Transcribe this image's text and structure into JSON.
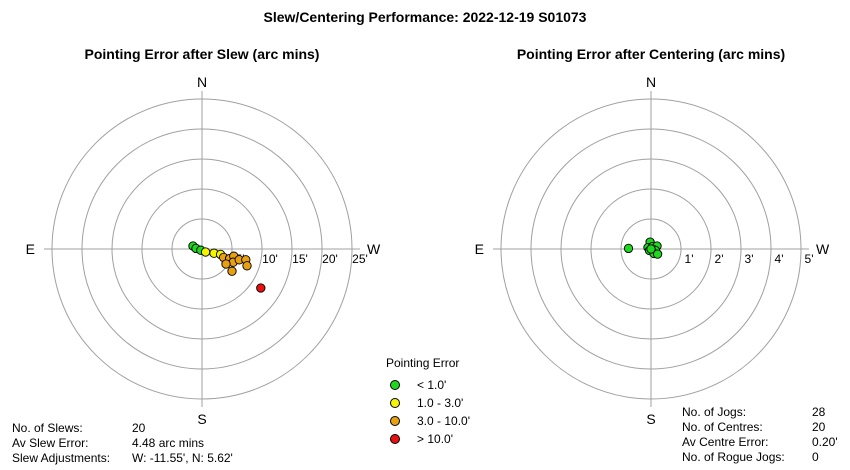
{
  "title": "Slew/Centering Performance: 2022-12-19 S01073",
  "chart_data": [
    {
      "type": "scatter",
      "subtype": "polar",
      "title": "Pointing Error after Slew (arc mins)",
      "directions": {
        "north": "N",
        "south": "S",
        "east": "E",
        "west": "W"
      },
      "ring_labels": [
        "5'",
        "10'",
        "15'",
        "20'",
        "25'"
      ],
      "ring_values": [
        5,
        10,
        15,
        20,
        25
      ],
      "max_radius": 25,
      "points": [
        {
          "w": -1.5,
          "n": 0.5,
          "cat": "green"
        },
        {
          "w": -1.0,
          "n": 0.1,
          "cat": "green"
        },
        {
          "w": -0.2,
          "n": -0.2,
          "cat": "green"
        },
        {
          "w": 0.6,
          "n": -0.5,
          "cat": "yellow"
        },
        {
          "w": 2.0,
          "n": -0.7,
          "cat": "yellow"
        },
        {
          "w": 3.1,
          "n": -0.9,
          "cat": "yellow"
        },
        {
          "w": 3.6,
          "n": -1.4,
          "cat": "orange"
        },
        {
          "w": 4.6,
          "n": -1.6,
          "cat": "orange"
        },
        {
          "w": 5.3,
          "n": -1.2,
          "cat": "orange"
        },
        {
          "w": 5.2,
          "n": -2.2,
          "cat": "orange"
        },
        {
          "w": 6.2,
          "n": -1.8,
          "cat": "orange"
        },
        {
          "w": 4.0,
          "n": -2.5,
          "cat": "orange"
        },
        {
          "w": 7.3,
          "n": -1.8,
          "cat": "orange"
        },
        {
          "w": 7.5,
          "n": -2.8,
          "cat": "orange"
        },
        {
          "w": 5.0,
          "n": -3.7,
          "cat": "orange"
        },
        {
          "w": 9.8,
          "n": -6.5,
          "cat": "red"
        }
      ]
    },
    {
      "type": "scatter",
      "subtype": "polar",
      "title": "Pointing Error after Centering (arc mins)",
      "directions": {
        "north": "N",
        "south": "S",
        "east": "E",
        "west": "W"
      },
      "ring_labels": [
        "1'",
        "2'",
        "3'",
        "4'",
        "5'"
      ],
      "ring_values": [
        1,
        2,
        3,
        4,
        5
      ],
      "max_radius": 5,
      "points": [
        {
          "w": -0.03,
          "n": 0.23,
          "cat": "green"
        },
        {
          "w": -0.1,
          "n": 0.05,
          "cat": "green"
        },
        {
          "w": 0.05,
          "n": 0.08,
          "cat": "green"
        },
        {
          "w": 0.2,
          "n": 0.1,
          "cat": "green"
        },
        {
          "w": -0.05,
          "n": -0.05,
          "cat": "green"
        },
        {
          "w": 0.08,
          "n": -0.02,
          "cat": "green"
        },
        {
          "w": 0.15,
          "n": -0.05,
          "cat": "green"
        },
        {
          "w": 0.1,
          "n": -0.15,
          "cat": "green"
        },
        {
          "w": 0.22,
          "n": -0.17,
          "cat": "green"
        },
        {
          "w": -0.75,
          "n": 0.02,
          "cat": "green"
        },
        {
          "w": 0.0,
          "n": 0.0,
          "cat": "green"
        }
      ]
    }
  ],
  "legend": {
    "title": "Pointing Error",
    "entries": [
      {
        "key": "green",
        "label": "< 1.0'",
        "color": "#1ed81e"
      },
      {
        "key": "yellow",
        "label": "1.0 - 3.0'",
        "color": "#f5f500"
      },
      {
        "key": "orange",
        "label": "3.0 - 10.0'",
        "color": "#e8a010"
      },
      {
        "key": "red",
        "label": "> 10.0'",
        "color": "#e81010"
      }
    ]
  },
  "slew_stats": [
    {
      "label": "No. of Slews:",
      "value": "20"
    },
    {
      "label": "Av Slew Error:",
      "value": "4.48 arc mins"
    },
    {
      "label": "Slew Adjustments:",
      "value": "W: -11.55', N: 5.62'"
    }
  ],
  "centre_stats": [
    {
      "label": "No. of Jogs:",
      "value": "28"
    },
    {
      "label": "No. of Centres:",
      "value": "20"
    },
    {
      "label": "Av Centre Error:",
      "value": "0.20'"
    },
    {
      "label": "No. of Rogue Jogs:",
      "value": "0"
    }
  ]
}
